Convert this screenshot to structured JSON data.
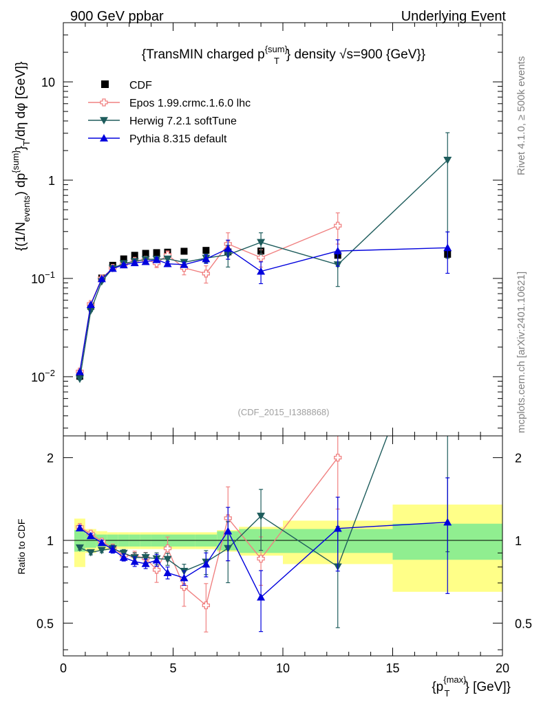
{
  "header": {
    "left": "900 GeV ppbar",
    "right": "Underlying Event"
  },
  "side_labels": {
    "rivet": "Rivet 4.1.0, ≥ 500k events",
    "mcplots": "mcplots.cern.ch [arXiv:2401.10621]"
  },
  "chart_data": {
    "type": "scatter",
    "title": {
      "main": "{TransMIN charged p",
      "sup": "{sum}",
      "sub": "T",
      "rest": "} density √s=900 {GeV}}"
    },
    "analysis_label": "(CDF_2015_I1388868)",
    "ylabel": {
      "p1": "{(1/N",
      "sub1": "events",
      "p2": ") dp",
      "sup2": "{sum}",
      "p3": "}",
      "sub3": "T",
      "p4": "/dη  dφ [GeV]}"
    },
    "xlabel": {
      "p1": "{p",
      "sup": "{max}",
      "sub": "T",
      "p2": "} [GeV]}"
    },
    "ratio_ylabel": "Ratio to CDF",
    "xlim": [
      0,
      20
    ],
    "ylim": [
      0.0025,
      40
    ],
    "yscale": "log",
    "ratio_ylim": [
      0.38,
      2.4
    ],
    "ratio_yscale": "log",
    "xticks": [
      "0",
      "5",
      "10",
      "15",
      "20"
    ],
    "xtick_values": [
      0,
      5,
      10,
      15,
      20
    ],
    "yticks": [
      {
        "value": 0.01,
        "base": "10",
        "exp": "−2"
      },
      {
        "value": 0.1,
        "base": "10",
        "exp": "−1"
      },
      {
        "value": 1,
        "base": "1",
        "exp": ""
      },
      {
        "value": 10,
        "base": "10",
        "exp": ""
      }
    ],
    "ratio_yticks": [
      {
        "value": 0.5,
        "label": "0.5"
      },
      {
        "value": 1,
        "label": "1"
      },
      {
        "value": 2,
        "label": "2"
      }
    ],
    "x": [
      0.75,
      1.25,
      1.75,
      2.25,
      2.75,
      3.25,
      3.75,
      4.25,
      4.75,
      5.5,
      6.5,
      7.5,
      9.0,
      12.5,
      17.5
    ],
    "xbins": [
      [
        0.5,
        1
      ],
      [
        1,
        1.5
      ],
      [
        1.5,
        2
      ],
      [
        2,
        2.5
      ],
      [
        2.5,
        3
      ],
      [
        3,
        3.5
      ],
      [
        3.5,
        4
      ],
      [
        4,
        4.5
      ],
      [
        4.5,
        5
      ],
      [
        5,
        6
      ],
      [
        6,
        7
      ],
      [
        7,
        8
      ],
      [
        8,
        10
      ],
      [
        10,
        15
      ],
      [
        15,
        20
      ]
    ],
    "data": {
      "name": "CDF",
      "color": "#000000",
      "values": [
        0.0101,
        0.052,
        0.101,
        0.136,
        0.158,
        0.172,
        0.18,
        0.183,
        0.185,
        0.189,
        0.193,
        0.186,
        0.19,
        0.172,
        0.176
      ],
      "band_green": [
        0.09,
        0.06,
        0.05,
        0.05,
        0.05,
        0.05,
        0.05,
        0.05,
        0.05,
        0.05,
        0.05,
        0.08,
        0.1,
        0.1,
        0.15
      ],
      "band_yellow": [
        0.2,
        0.1,
        0.08,
        0.07,
        0.07,
        0.07,
        0.07,
        0.07,
        0.07,
        0.07,
        0.07,
        0.09,
        0.12,
        0.18,
        0.35
      ]
    },
    "series": [
      {
        "name": "Epos 1.99.crmc.1.6.0 lhc",
        "color": "#f08080",
        "marker": "open-cross",
        "values": [
          0.0113,
          0.055,
          0.1,
          0.128,
          0.139,
          0.151,
          0.155,
          0.143,
          0.173,
          0.128,
          0.112,
          0.224,
          0.163,
          0.344,
          null
        ],
        "yerr_rel": [
          0.02,
          0.02,
          0.02,
          0.03,
          0.03,
          0.04,
          0.05,
          0.1,
          0.1,
          0.15,
          0.2,
          0.3,
          0.2,
          0.35,
          null
        ]
      },
      {
        "name": "Herwig 7.2.1 softTune",
        "color": "#1e5c5c",
        "marker": "down-triangle",
        "values": [
          0.0095,
          0.047,
          0.093,
          0.127,
          0.142,
          0.149,
          0.156,
          0.157,
          0.158,
          0.146,
          0.161,
          0.174,
          0.233,
          0.138,
          1.6
        ],
        "yerr_rel": [
          0.02,
          0.02,
          0.02,
          0.03,
          0.03,
          0.04,
          0.04,
          0.05,
          0.05,
          0.06,
          0.1,
          0.25,
          0.25,
          0.4,
          0.9
        ]
      },
      {
        "name": "Pythia 8.315 default",
        "color": "#0000dd",
        "marker": "up-triangle",
        "values": [
          0.0112,
          0.054,
          0.099,
          0.126,
          0.137,
          0.144,
          0.148,
          0.155,
          0.141,
          0.138,
          0.158,
          0.201,
          0.118,
          0.19,
          0.205
        ],
        "yerr_rel": [
          0.02,
          0.02,
          0.02,
          0.03,
          0.03,
          0.04,
          0.04,
          0.05,
          0.05,
          0.06,
          0.1,
          0.22,
          0.25,
          0.3,
          0.45
        ]
      }
    ]
  }
}
